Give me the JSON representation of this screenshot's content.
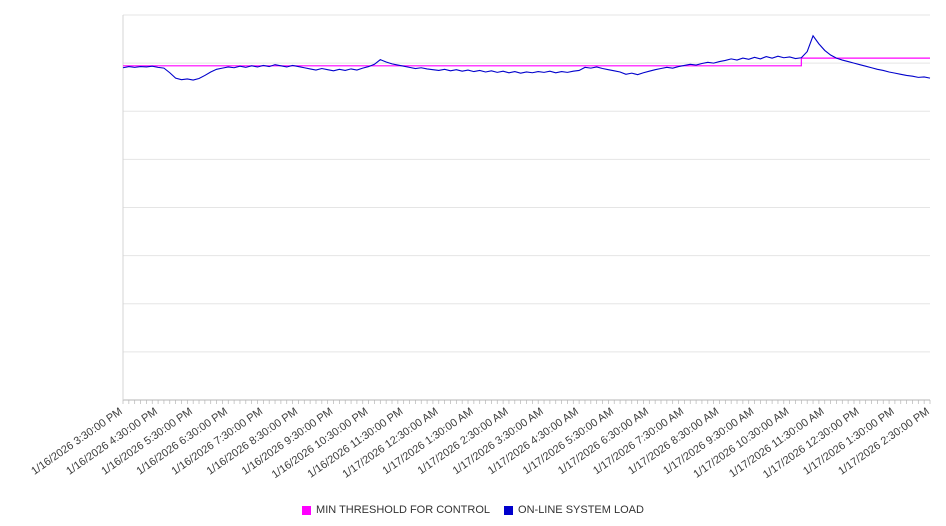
{
  "chart_data": {
    "type": "line",
    "title": "",
    "xlabel": "",
    "ylabel": "",
    "ylim": [
      0,
      100
    ],
    "grid": true,
    "y_axis_labels_visible": false,
    "legend_position": "bottom",
    "x_range": [
      "1/16/2026 3:30:00 PM",
      "1/17/2026 2:30:00 PM"
    ],
    "sample_interval_minutes": 10,
    "tick_labels": [
      "1/16/2026 3:30:00 PM",
      "1/16/2026 4:30:00 PM",
      "1/16/2026 5:30:00 PM",
      "1/16/2026 6:30:00 PM",
      "1/16/2026 7:30:00 PM",
      "1/16/2026 8:30:00 PM",
      "1/16/2026 9:30:00 PM",
      "1/16/2026 10:30:00 PM",
      "1/16/2026 11:30:00 PM",
      "1/17/2026 12:30:00 AM",
      "1/17/2026 1:30:00 AM",
      "1/17/2026 2:30:00 AM",
      "1/17/2026 3:30:00 AM",
      "1/17/2026 4:30:00 AM",
      "1/17/2026 5:30:00 AM",
      "1/17/2026 6:30:00 AM",
      "1/17/2026 7:30:00 AM",
      "1/17/2026 8:30:00 AM",
      "1/17/2026 9:30:00 AM",
      "1/17/2026 10:30:00 AM",
      "1/17/2026 11:30:00 AM",
      "1/17/2026 12:30:00 PM",
      "1/17/2026 1:30:00 PM",
      "1/17/2026 2:30:00 PM"
    ],
    "series": [
      {
        "name": "MIN THRESHOLD FOR CONTROL",
        "color": "#ff00ff",
        "shape": "step",
        "value_before_step": 86.8,
        "value_after_step": 88.8,
        "step_at_index": 116
      },
      {
        "name": "ON-LINE SYSTEM LOAD",
        "color": "#0000cc",
        "shape": "line",
        "values": [
          86.3,
          86.6,
          86.4,
          86.6,
          86.5,
          86.7,
          86.4,
          86.2,
          85.0,
          83.6,
          83.2,
          83.4,
          83.1,
          83.5,
          84.3,
          85.2,
          85.9,
          86.2,
          86.5,
          86.3,
          86.7,
          86.4,
          86.8,
          86.5,
          86.9,
          86.6,
          87.1,
          86.8,
          86.5,
          86.9,
          86.6,
          86.3,
          86.0,
          85.7,
          86.1,
          85.8,
          85.5,
          85.9,
          85.6,
          86.0,
          85.7,
          86.2,
          86.6,
          87.2,
          88.4,
          87.8,
          87.3,
          87.0,
          86.7,
          86.4,
          86.1,
          86.3,
          86.0,
          85.8,
          85.6,
          85.9,
          85.5,
          85.8,
          85.4,
          85.7,
          85.3,
          85.6,
          85.2,
          85.5,
          85.1,
          85.4,
          85.0,
          85.3,
          84.9,
          85.2,
          85.0,
          85.3,
          85.1,
          85.4,
          85.0,
          85.3,
          85.1,
          85.4,
          85.6,
          86.4,
          86.2,
          86.5,
          86.1,
          85.8,
          85.5,
          85.2,
          84.6,
          84.9,
          84.5,
          85.0,
          85.4,
          85.8,
          86.1,
          86.4,
          86.2,
          86.6,
          86.9,
          87.2,
          87.0,
          87.4,
          87.7,
          87.5,
          87.9,
          88.2,
          88.6,
          88.3,
          88.8,
          88.5,
          89.0,
          88.6,
          89.2,
          88.8,
          89.3,
          88.9,
          89.1,
          88.7,
          88.9,
          90.5,
          94.6,
          92.5,
          90.8,
          89.6,
          88.8,
          88.3,
          87.9,
          87.5,
          87.1,
          86.7,
          86.3,
          85.9,
          85.6,
          85.2,
          84.9,
          84.6,
          84.3,
          84.1,
          83.8,
          83.9,
          83.6
        ]
      }
    ],
    "colors": {
      "gridline": "#e5e5e5",
      "axis": "#b5b5b5",
      "left_axis": "#d4d4d4",
      "tick_label_text": "#3c3c3c",
      "legend_text": "#333333"
    }
  },
  "legend": {
    "threshold_label": "MIN THRESHOLD FOR CONTROL",
    "load_label": "ON-LINE SYSTEM LOAD"
  }
}
